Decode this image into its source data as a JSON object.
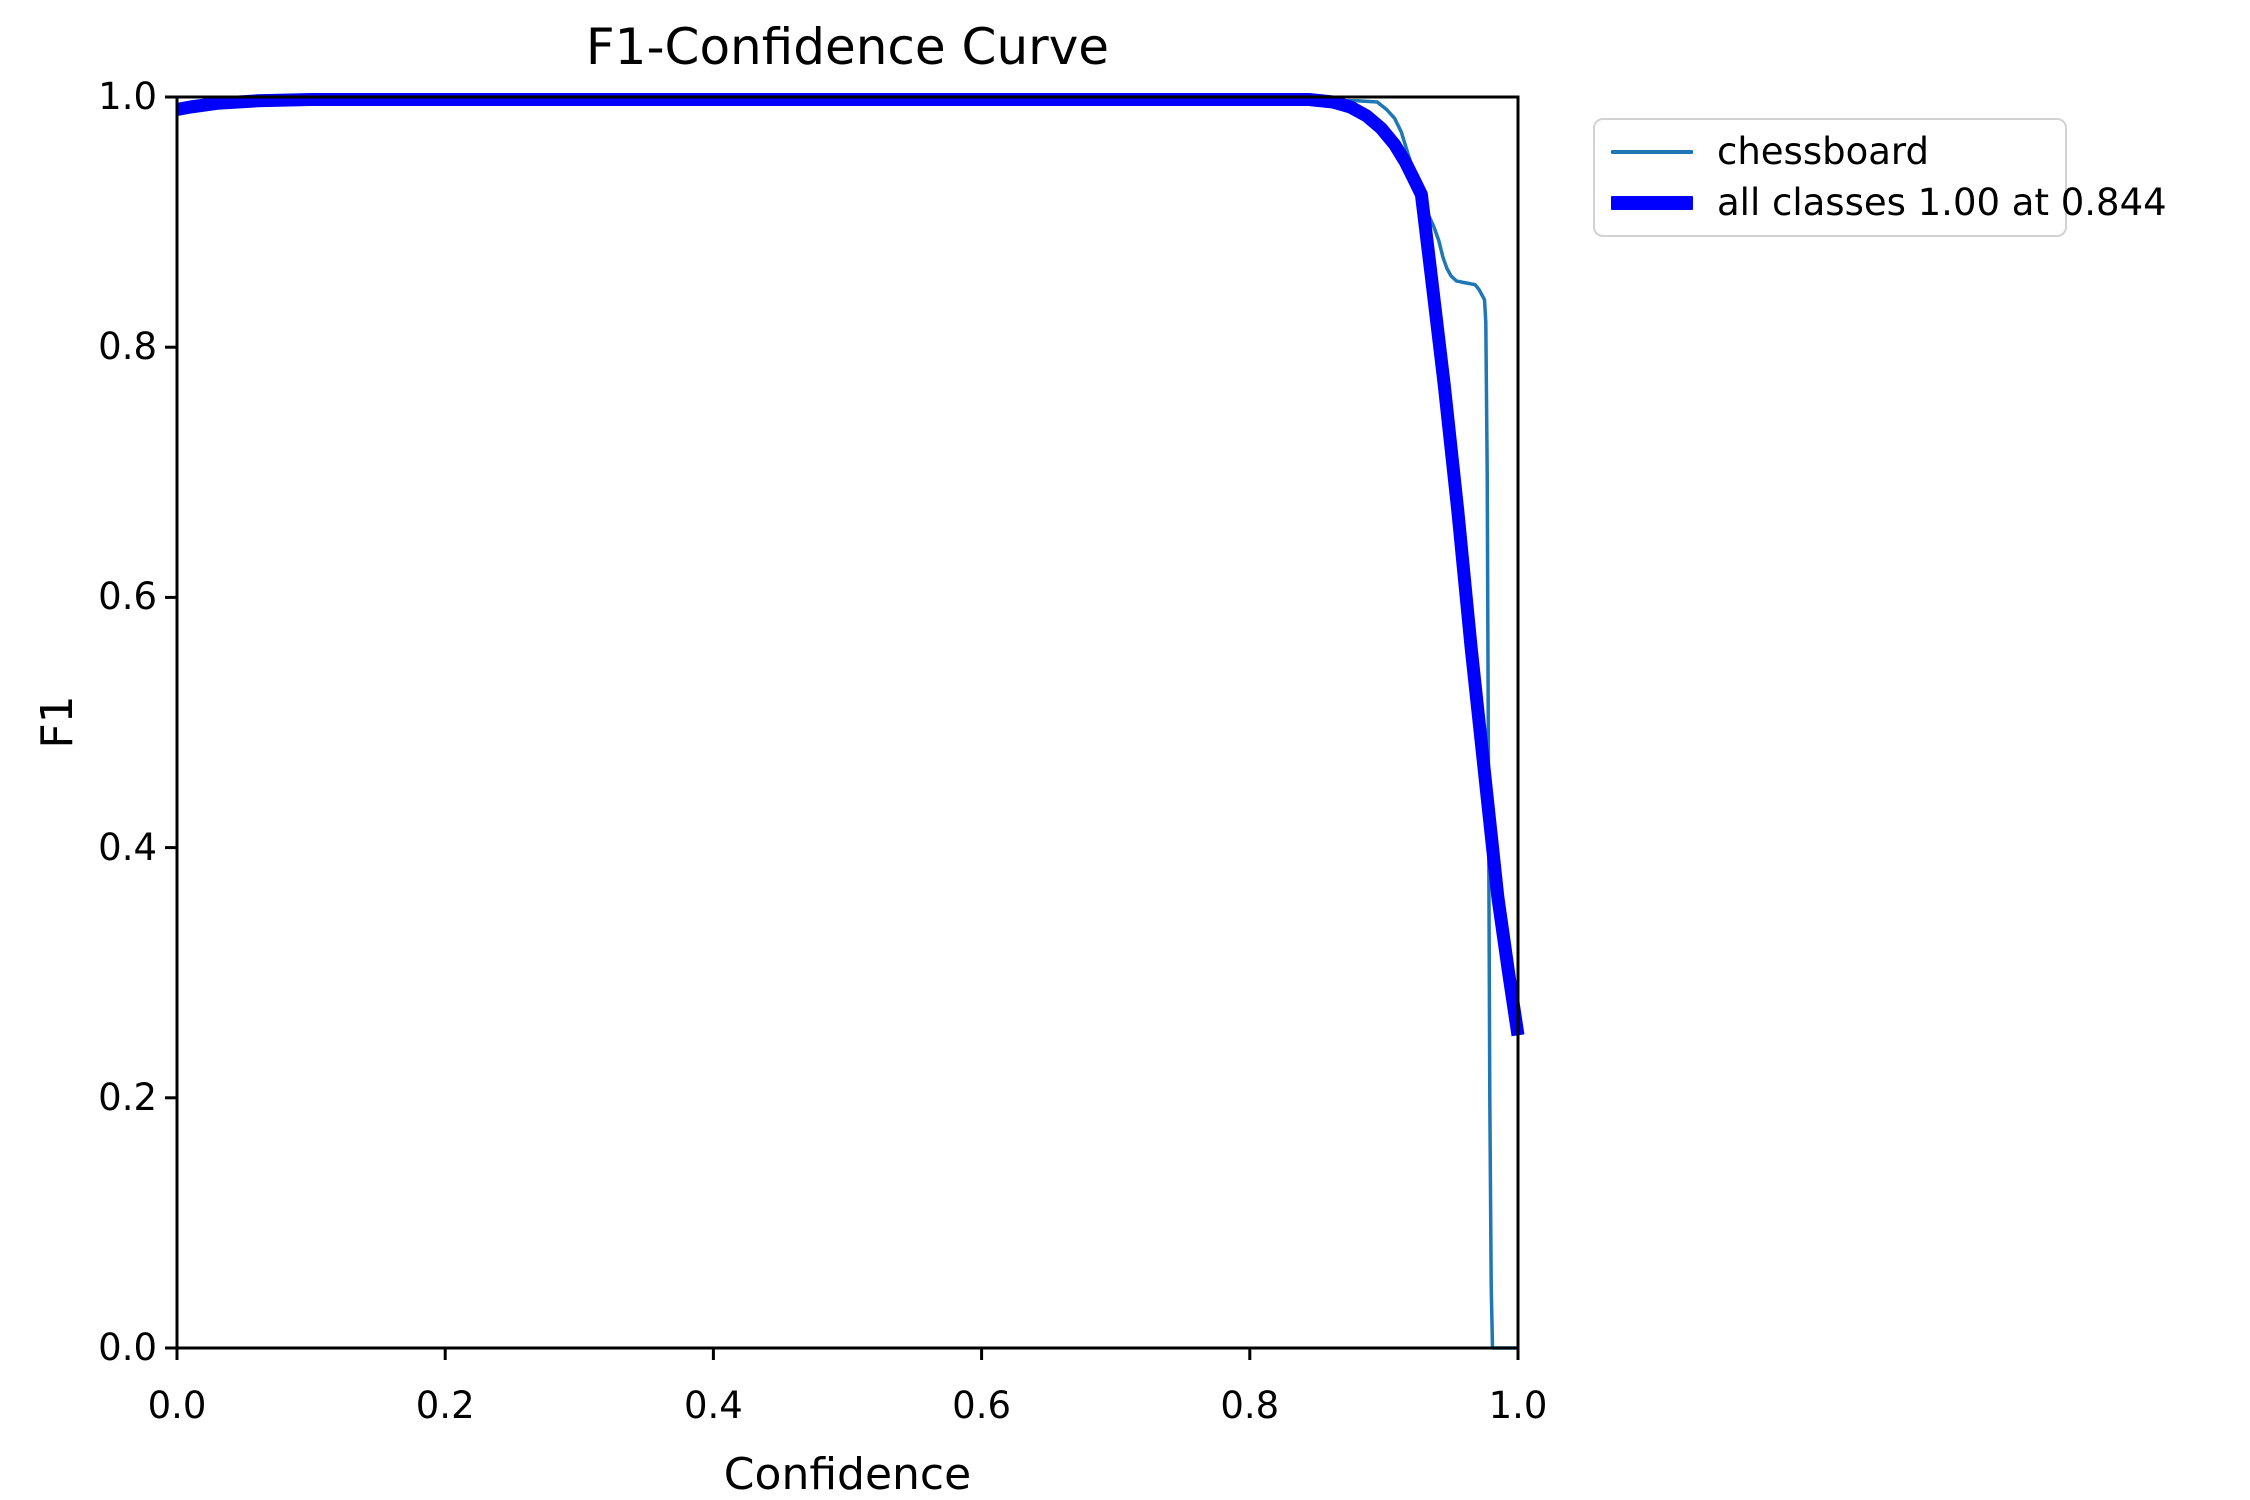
{
  "figure": {
    "title": "F1-Confidence Curve",
    "xlabel": "Confidence",
    "ylabel": "F1"
  },
  "legend": {
    "items": [
      {
        "label": "chessboard",
        "color": "#1f77b4",
        "style": "thin"
      },
      {
        "label": "all classes 1.00 at 0.844",
        "color": "#0000ff",
        "style": "thick"
      }
    ]
  },
  "chart_data": {
    "type": "line",
    "title": "F1-Confidence Curve",
    "xlabel": "Confidence",
    "ylabel": "F1",
    "xlim": [
      0.0,
      1.0
    ],
    "ylim": [
      0.0,
      1.0
    ],
    "x_ticks": [
      "0.0",
      "0.2",
      "0.4",
      "0.6",
      "0.8",
      "1.0"
    ],
    "y_ticks": [
      "0.0",
      "0.2",
      "0.4",
      "0.6",
      "0.8",
      "1.0"
    ],
    "grid": false,
    "legend_position": "outside-upper-right",
    "annotations": {
      "best_f1": 1.0,
      "best_confidence": 0.844
    },
    "series": [
      {
        "name": "chessboard",
        "color": "#1f77b4",
        "line_width": 3.5,
        "x": [
          0.0,
          0.01,
          0.03,
          0.06,
          0.1,
          0.15,
          0.2,
          0.3,
          0.4,
          0.5,
          0.6,
          0.7,
          0.8,
          0.85,
          0.88,
          0.895,
          0.902,
          0.908,
          0.913,
          0.917,
          0.921,
          0.925,
          0.929,
          0.933,
          0.937,
          0.941,
          0.944,
          0.947,
          0.95,
          0.954,
          0.958,
          0.963,
          0.968,
          0.971,
          0.973,
          0.975,
          0.976,
          0.977,
          0.978,
          0.979,
          0.98,
          0.981,
          1.0
        ],
        "y": [
          0.99,
          0.992,
          0.994,
          0.996,
          0.997,
          0.997,
          0.997,
          0.997,
          0.997,
          0.997,
          0.997,
          0.997,
          0.997,
          0.997,
          0.997,
          0.996,
          0.99,
          0.983,
          0.972,
          0.958,
          0.944,
          0.93,
          0.917,
          0.906,
          0.897,
          0.885,
          0.872,
          0.863,
          0.857,
          0.853,
          0.852,
          0.851,
          0.85,
          0.846,
          0.842,
          0.838,
          0.82,
          0.7,
          0.45,
          0.2,
          0.05,
          0.0,
          0.0
        ]
      },
      {
        "name": "all classes",
        "color": "#0000ff",
        "line_width": 13,
        "x": [
          0.0,
          0.01,
          0.03,
          0.06,
          0.1,
          0.2,
          0.3,
          0.4,
          0.5,
          0.6,
          0.7,
          0.8,
          0.844,
          0.862,
          0.875,
          0.887,
          0.898,
          0.908,
          0.916,
          0.923,
          0.928,
          0.935,
          0.945,
          0.955,
          0.965,
          0.975,
          0.985,
          0.993,
          1.0
        ],
        "y": [
          0.99,
          0.992,
          0.995,
          0.997,
          0.998,
          0.998,
          0.998,
          0.998,
          0.998,
          0.998,
          0.998,
          0.998,
          0.998,
          0.996,
          0.992,
          0.985,
          0.975,
          0.962,
          0.948,
          0.933,
          0.922,
          0.86,
          0.77,
          0.67,
          0.56,
          0.46,
          0.36,
          0.3,
          0.25
        ]
      }
    ]
  }
}
